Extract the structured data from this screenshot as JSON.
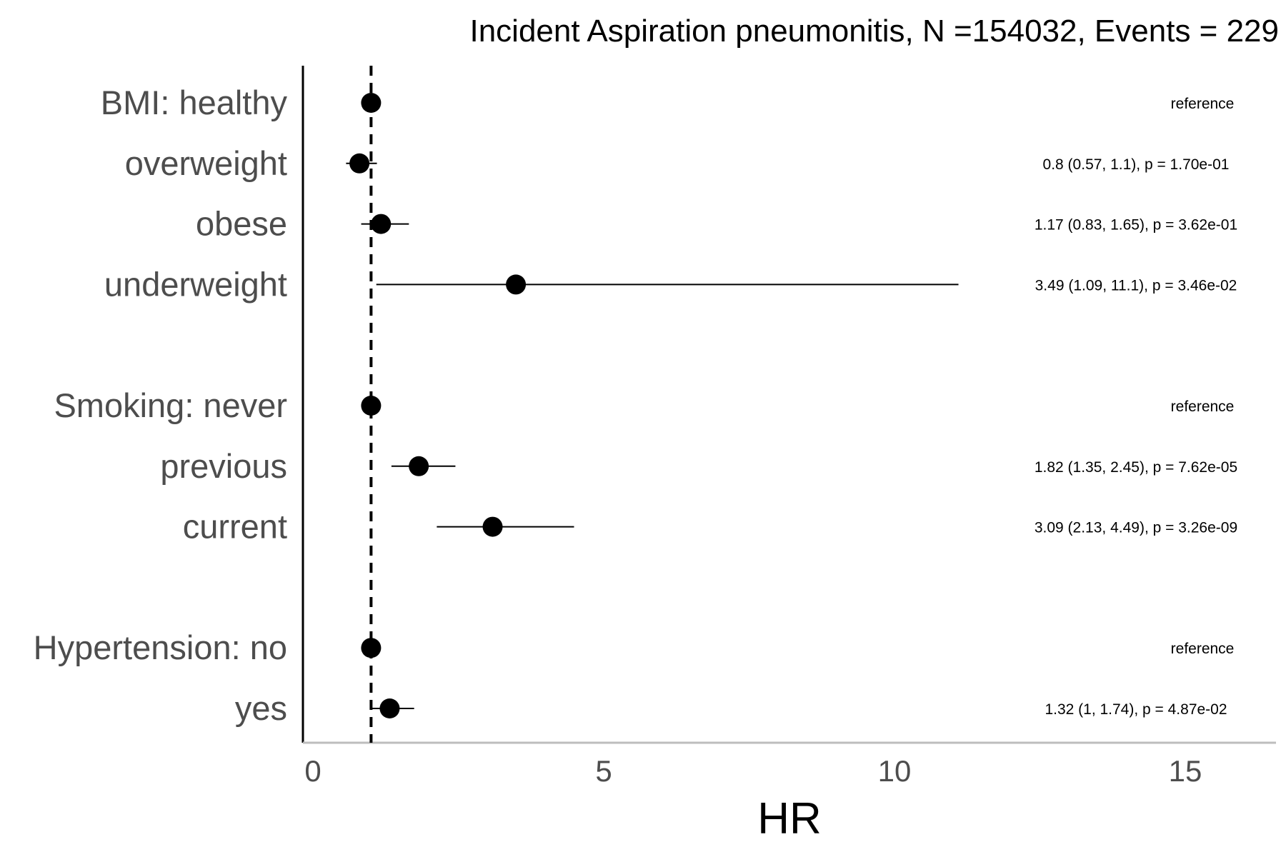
{
  "chart_data": {
    "type": "forest",
    "title": "Incident Aspiration pneumonitis, N =154032, Events = 229",
    "xlabel": "HR",
    "xlim": [
      0,
      16.5
    ],
    "xticks": [
      0,
      5,
      10,
      15
    ],
    "reference_line": 1,
    "rows": [
      {
        "label": "BMI: healthy",
        "hr": 1.0,
        "lower": null,
        "upper": null,
        "annotation": "reference"
      },
      {
        "label": "overweight",
        "hr": 0.8,
        "lower": 0.57,
        "upper": 1.1,
        "annotation": "0.8 (0.57, 1.1), p = 1.70e-01"
      },
      {
        "label": "obese",
        "hr": 1.17,
        "lower": 0.83,
        "upper": 1.65,
        "annotation": "1.17 (0.83, 1.65), p = 3.62e-01"
      },
      {
        "label": "underweight",
        "hr": 3.49,
        "lower": 1.09,
        "upper": 11.1,
        "annotation": "3.49 (1.09, 11.1), p = 3.46e-02"
      },
      {
        "label": "",
        "hr": null,
        "lower": null,
        "upper": null,
        "annotation": ""
      },
      {
        "label": "Smoking: never",
        "hr": 1.0,
        "lower": null,
        "upper": null,
        "annotation": "reference"
      },
      {
        "label": "previous",
        "hr": 1.82,
        "lower": 1.35,
        "upper": 2.45,
        "annotation": "1.82 (1.35, 2.45), p = 7.62e-05"
      },
      {
        "label": "current",
        "hr": 3.09,
        "lower": 2.13,
        "upper": 4.49,
        "annotation": "3.09 (2.13, 4.49), p = 3.26e-09"
      },
      {
        "label": "",
        "hr": null,
        "lower": null,
        "upper": null,
        "annotation": ""
      },
      {
        "label": "Hypertension: no",
        "hr": 1.0,
        "lower": null,
        "upper": null,
        "annotation": "reference"
      },
      {
        "label": "yes",
        "hr": 1.32,
        "lower": 1.0,
        "upper": 1.74,
        "annotation": "1.32 (1, 1.74), p = 4.87e-02"
      }
    ]
  }
}
